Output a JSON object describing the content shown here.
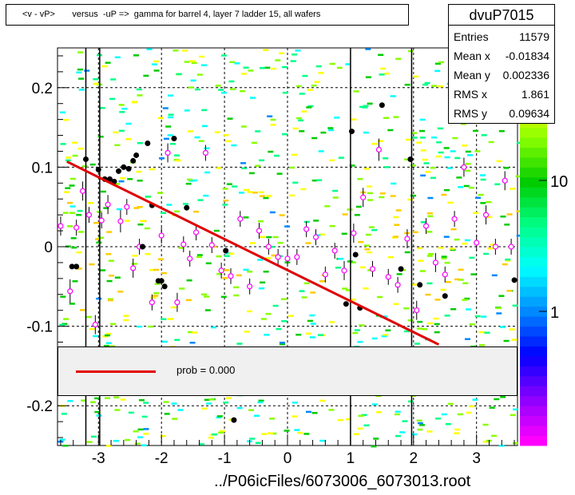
{
  "title": "<v - vP>       versus  -uP =>  gamma for barrel 4, layer 7 ladder 15, all wafers",
  "stats": {
    "name": "dvuP7015",
    "rows": [
      {
        "key": "Entries",
        "value": "11579"
      },
      {
        "key": "Mean x",
        "value": "-0.01834"
      },
      {
        "key": "Mean y",
        "value": "0.002336"
      },
      {
        "key": "RMS x",
        "value": "1.861"
      },
      {
        "key": "RMS y",
        "value": "0.09634"
      }
    ]
  },
  "legend": {
    "label": "prob = 0.000",
    "color": "#e00000"
  },
  "footer": "../P06icFiles/6073006_6073013.root",
  "chart_data": {
    "type": "scatter",
    "title": "<v - vP>       versus  -uP =>  gamma for barrel 4, layer 7 ladder 15, all wafers",
    "xlim": [
      -3.65,
      3.65
    ],
    "ylim": [
      -0.25,
      0.25
    ],
    "x_ticks": [
      -3,
      -2,
      -1,
      0,
      1,
      2,
      3
    ],
    "x_tick_labels": [
      "-3",
      "-2",
      "-1",
      "0",
      "1",
      "2",
      "3"
    ],
    "y_ticks": [
      -0.2,
      -0.1,
      0,
      0.1,
      0.2
    ],
    "y_tick_labels": [
      "-0.2",
      "-0.1",
      "0",
      "0.1",
      "0.2"
    ],
    "grid": true,
    "colorbar": {
      "scale": "log",
      "tick_labels": [
        "1",
        "10"
      ],
      "palette": [
        "#ff00ff",
        "#8800ff",
        "#0000ff",
        "#0088ff",
        "#00ffff",
        "#00ff88",
        "#00cc00",
        "#88ff00",
        "#ffff00",
        "#ffcc00"
      ]
    },
    "fit_line": {
      "name": "prob = 0.000",
      "color": "#e00000",
      "x": [
        -3.5,
        2.4
      ],
      "y": [
        0.107,
        -0.123
      ]
    },
    "vertical_lines_x": [
      -3.2,
      -2.98,
      1.0,
      1.97
    ],
    "black_points": [
      {
        "x": -3.42,
        "y": -0.025
      },
      {
        "x": -3.35,
        "y": -0.025
      },
      {
        "x": -3.2,
        "y": 0.11
      },
      {
        "x": -3.0,
        "y": 0.097
      },
      {
        "x": -2.9,
        "y": 0.085
      },
      {
        "x": -2.82,
        "y": 0.085
      },
      {
        "x": -2.75,
        "y": 0.082
      },
      {
        "x": -2.68,
        "y": 0.095
      },
      {
        "x": -2.6,
        "y": 0.1
      },
      {
        "x": -2.52,
        "y": 0.098
      },
      {
        "x": -2.45,
        "y": 0.108
      },
      {
        "x": -2.4,
        "y": 0.115
      },
      {
        "x": -2.22,
        "y": 0.13
      },
      {
        "x": -2.15,
        "y": 0.052
      },
      {
        "x": -2.3,
        "y": 0.0
      },
      {
        "x": -2.05,
        "y": -0.043
      },
      {
        "x": -2.0,
        "y": -0.043
      },
      {
        "x": -1.95,
        "y": -0.05
      },
      {
        "x": -1.8,
        "y": 0.136
      },
      {
        "x": -1.6,
        "y": 0.049
      },
      {
        "x": -0.98,
        "y": -0.005
      },
      {
        "x": -0.85,
        "y": -0.218
      },
      {
        "x": 0.93,
        "y": -0.072
      },
      {
        "x": 1.02,
        "y": 0.145
      },
      {
        "x": 1.08,
        "y": -0.01
      },
      {
        "x": 1.15,
        "y": -0.077
      },
      {
        "x": 1.5,
        "y": 0.178
      },
      {
        "x": 1.8,
        "y": -0.028
      },
      {
        "x": 1.95,
        "y": 0.11
      },
      {
        "x": 2.1,
        "y": -0.048
      },
      {
        "x": 2.5,
        "y": -0.062
      },
      {
        "x": 3.6,
        "y": -0.042
      }
    ],
    "profile_points": [
      {
        "x": -3.6,
        "y": 0.026,
        "e": 0.012
      },
      {
        "x": -3.45,
        "y": -0.056,
        "e": 0.015
      },
      {
        "x": -3.35,
        "y": 0.024,
        "e": 0.01
      },
      {
        "x": -3.25,
        "y": 0.07,
        "e": 0.012
      },
      {
        "x": -3.15,
        "y": 0.04,
        "e": 0.01
      },
      {
        "x": -3.05,
        "y": -0.098,
        "e": 0.012
      },
      {
        "x": -2.95,
        "y": 0.033,
        "e": 0.01
      },
      {
        "x": -2.85,
        "y": 0.053,
        "e": 0.012
      },
      {
        "x": -2.65,
        "y": 0.032,
        "e": 0.014
      },
      {
        "x": -2.55,
        "y": 0.05,
        "e": 0.01
      },
      {
        "x": -2.45,
        "y": -0.027,
        "e": 0.012
      },
      {
        "x": -2.35,
        "y": 0.0,
        "e": 0.01
      },
      {
        "x": -2.15,
        "y": -0.07,
        "e": 0.01
      },
      {
        "x": -2.0,
        "y": 0.014,
        "e": 0.01
      },
      {
        "x": -1.9,
        "y": 0.118,
        "e": 0.012
      },
      {
        "x": -1.75,
        "y": -0.07,
        "e": 0.012
      },
      {
        "x": -1.65,
        "y": 0.003,
        "e": 0.01
      },
      {
        "x": -1.55,
        "y": -0.015,
        "e": 0.01
      },
      {
        "x": -1.45,
        "y": 0.018,
        "e": 0.01
      },
      {
        "x": -1.3,
        "y": 0.118,
        "e": 0.01
      },
      {
        "x": -1.2,
        "y": 0.002,
        "e": 0.01
      },
      {
        "x": -1.05,
        "y": -0.03,
        "e": 0.01
      },
      {
        "x": -0.9,
        "y": -0.037,
        "e": 0.01
      },
      {
        "x": -0.75,
        "y": 0.035,
        "e": 0.01
      },
      {
        "x": -0.6,
        "y": -0.05,
        "e": 0.01
      },
      {
        "x": -0.45,
        "y": 0.02,
        "e": 0.01
      },
      {
        "x": -0.3,
        "y": 0.0,
        "e": 0.01
      },
      {
        "x": -0.15,
        "y": -0.013,
        "e": 0.01
      },
      {
        "x": 0.0,
        "y": -0.015,
        "e": 0.01
      },
      {
        "x": 0.15,
        "y": -0.013,
        "e": 0.01
      },
      {
        "x": 0.3,
        "y": 0.022,
        "e": 0.01
      },
      {
        "x": 0.45,
        "y": 0.012,
        "e": 0.01
      },
      {
        "x": 0.6,
        "y": -0.035,
        "e": 0.01
      },
      {
        "x": 0.75,
        "y": -0.005,
        "e": 0.01
      },
      {
        "x": 0.9,
        "y": -0.03,
        "e": 0.012
      },
      {
        "x": 1.05,
        "y": 0.017,
        "e": 0.012
      },
      {
        "x": 1.2,
        "y": 0.062,
        "e": 0.012
      },
      {
        "x": 1.35,
        "y": -0.028,
        "e": 0.01
      },
      {
        "x": 1.45,
        "y": 0.122,
        "e": 0.014
      },
      {
        "x": 1.6,
        "y": -0.038,
        "e": 0.01
      },
      {
        "x": 1.75,
        "y": -0.048,
        "e": 0.01
      },
      {
        "x": 1.9,
        "y": 0.01,
        "e": 0.012
      },
      {
        "x": 2.05,
        "y": -0.08,
        "e": 0.012
      },
      {
        "x": 2.2,
        "y": 0.026,
        "e": 0.01
      },
      {
        "x": 2.35,
        "y": -0.02,
        "e": 0.012
      },
      {
        "x": 2.5,
        "y": -0.035,
        "e": 0.01
      },
      {
        "x": 2.65,
        "y": 0.035,
        "e": 0.01
      },
      {
        "x": 2.8,
        "y": 0.1,
        "e": 0.012
      },
      {
        "x": 3.0,
        "y": 0.005,
        "e": 0.01
      },
      {
        "x": 3.15,
        "y": 0.04,
        "e": 0.012
      },
      {
        "x": 3.3,
        "y": 0.0,
        "e": 0.01
      },
      {
        "x": 3.45,
        "y": 0.083,
        "e": 0.012
      },
      {
        "x": 3.55,
        "y": 0.0,
        "e": 0.01
      }
    ]
  }
}
